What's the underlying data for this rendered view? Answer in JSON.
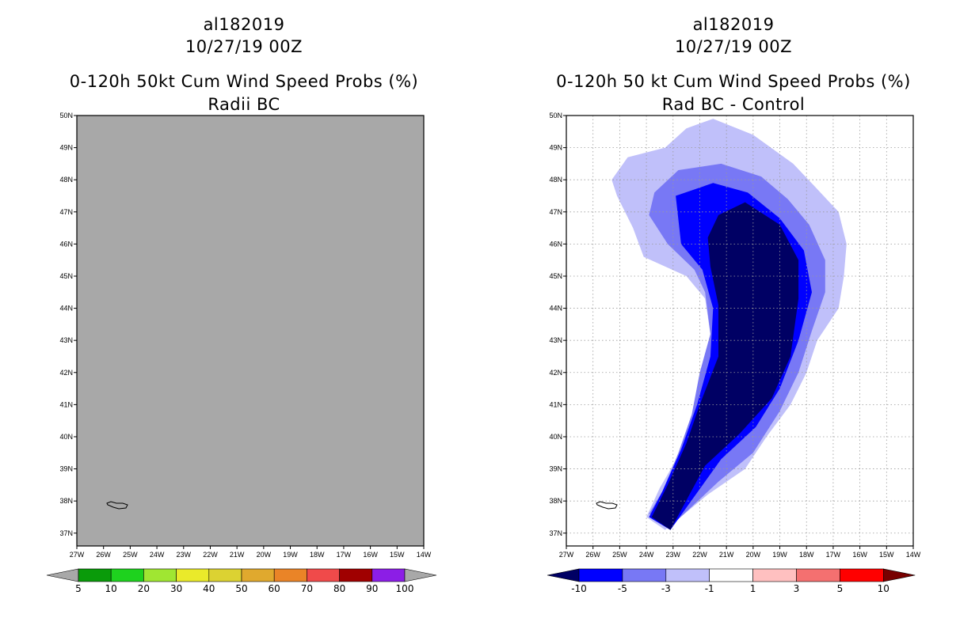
{
  "panels": [
    {
      "title": [
        "al182019",
        "10/27/19 00Z",
        "0-120h 50kt Cum Wind Speed Probs (%)",
        "Radii BC"
      ],
      "background": "#a8a8a8",
      "colorbar": {
        "labels": [
          "5",
          "10",
          "20",
          "30",
          "40",
          "50",
          "60",
          "70",
          "80",
          "90",
          "100"
        ],
        "colors": [
          "#0a9b0a",
          "#1ed21e",
          "#a0e632",
          "#eaea2a",
          "#dcd232",
          "#e0a92e",
          "#ea8427",
          "#f04a4a",
          "#a00000",
          "#8c1ee6"
        ],
        "low_arrow": "#a8a8a8",
        "high_arrow": "#a8a8a8"
      }
    },
    {
      "title": [
        "al182019",
        "10/27/19 00Z",
        "0-120h 50 kt Cum Wind Speed Probs (%)",
        "Rad BC - Control"
      ],
      "background": "#ffffff",
      "colorbar": {
        "labels": [
          "-10",
          "-5",
          "-3",
          "-1",
          "1",
          "3",
          "5",
          "10"
        ],
        "colors": [
          "#0000ff",
          "#7878f5",
          "#c0c0fa",
          "#ffffff",
          "#ffc0c0",
          "#f47070",
          "#ff0000"
        ],
        "low_arrow": "#000064",
        "high_arrow": "#780000"
      }
    }
  ],
  "map_axes": {
    "lon_ticks": [
      "27W",
      "26W",
      "25W",
      "24W",
      "23W",
      "22W",
      "21W",
      "20W",
      "19W",
      "18W",
      "17W",
      "16W",
      "15W",
      "14W"
    ],
    "lat_ticks": [
      "50N",
      "49N",
      "48N",
      "47N",
      "46N",
      "45N",
      "44N",
      "43N",
      "42N",
      "41N",
      "40N",
      "39N",
      "38N",
      "37N"
    ]
  },
  "chart_data": [
    {
      "type": "heatmap",
      "title": "0-120h 50kt Cum Wind Speed Probs (%) - Radii BC",
      "storm": "al182019",
      "valid": "10/27/19 00Z",
      "xrange_deg_lon": [
        -27,
        -14
      ],
      "yrange_deg_lat": [
        36.6,
        50
      ],
      "levels": [
        5,
        10,
        20,
        30,
        40,
        50,
        60,
        70,
        80,
        90,
        100
      ],
      "field": "all values below 5% (uniform gray)"
    },
    {
      "type": "heatmap",
      "title": "0-120h 50 kt Cum Wind Speed Probs (%) - Rad BC - Control",
      "storm": "al182019",
      "valid": "10/27/19 00Z",
      "xrange_deg_lon": [
        -27,
        -14
      ],
      "yrange_deg_lat": [
        36.6,
        50
      ],
      "levels": [
        -10,
        -5,
        -3,
        -1,
        1,
        3,
        5,
        10
      ],
      "contours": [
        {
          "level": "-1 to -3",
          "color": "#c0c0fa",
          "polygon_lon_lat": [
            [
              -23.3,
              49
            ],
            [
              -22.5,
              49.6
            ],
            [
              -21.5,
              49.9
            ],
            [
              -20,
              49.4
            ],
            [
              -18.5,
              48.5
            ],
            [
              -17.7,
              47.8
            ],
            [
              -16.8,
              47
            ],
            [
              -16.5,
              46
            ],
            [
              -16.6,
              45
            ],
            [
              -16.8,
              44
            ],
            [
              -17.6,
              43
            ],
            [
              -18,
              42
            ],
            [
              -18.6,
              41
            ],
            [
              -19.5,
              40
            ],
            [
              -20.3,
              39
            ],
            [
              -21.7,
              38.2
            ],
            [
              -23.3,
              37.1
            ],
            [
              -24,
              37.5
            ],
            [
              -23.5,
              38.4
            ],
            [
              -22.8,
              39.4
            ],
            [
              -22.3,
              40.5
            ],
            [
              -21.8,
              41.8
            ],
            [
              -21.6,
              43.2
            ],
            [
              -21.8,
              44.3
            ],
            [
              -22.5,
              45
            ],
            [
              -24.1,
              45.6
            ],
            [
              -24.5,
              46.5
            ],
            [
              -25.1,
              47.5
            ],
            [
              -25.3,
              48
            ],
            [
              -24.7,
              48.7
            ]
          ]
        },
        {
          "level": "-3 to -5",
          "color": "#7878f5",
          "polygon_lon_lat": [
            [
              -23.7,
              47.6
            ],
            [
              -22.8,
              48.3
            ],
            [
              -21.2,
              48.5
            ],
            [
              -19.7,
              48.1
            ],
            [
              -18.7,
              47.4
            ],
            [
              -17.9,
              46.6
            ],
            [
              -17.3,
              45.5
            ],
            [
              -17.3,
              44.5
            ],
            [
              -17.8,
              43.3
            ],
            [
              -18.3,
              42
            ],
            [
              -19,
              40.8
            ],
            [
              -20,
              39.5
            ],
            [
              -21.3,
              38.6
            ],
            [
              -23.1,
              37.2
            ],
            [
              -23.9,
              37.6
            ],
            [
              -23.4,
              38.3
            ],
            [
              -22.8,
              39.5
            ],
            [
              -22.3,
              40.7
            ],
            [
              -22,
              42
            ],
            [
              -21.6,
              43.2
            ],
            [
              -21.8,
              44.5
            ],
            [
              -22.2,
              45.2
            ],
            [
              -23.2,
              46
            ],
            [
              -23.9,
              46.9
            ]
          ]
        },
        {
          "level": "-5 to -10",
          "color": "#0000ff",
          "polygon_lon_lat": [
            [
              -22.9,
              47.5
            ],
            [
              -21.5,
              47.9
            ],
            [
              -20.2,
              47.6
            ],
            [
              -19,
              46.8
            ],
            [
              -18.1,
              45.8
            ],
            [
              -17.8,
              44.5
            ],
            [
              -18.3,
              43
            ],
            [
              -19,
              41.5
            ],
            [
              -19.9,
              40.3
            ],
            [
              -21.2,
              39.3
            ],
            [
              -23.1,
              37.1
            ],
            [
              -23.9,
              37.5
            ],
            [
              -23.4,
              38.3
            ],
            [
              -22.7,
              39.6
            ],
            [
              -22.1,
              41
            ],
            [
              -21.6,
              42.5
            ],
            [
              -21.5,
              44
            ],
            [
              -21.9,
              45.2
            ],
            [
              -22.7,
              46
            ]
          ]
        },
        {
          "level": "< -10",
          "color": "#000064",
          "polygon_lon_lat": [
            [
              -21.3,
              46.9
            ],
            [
              -20.3,
              47.3
            ],
            [
              -19,
              46.6
            ],
            [
              -18.3,
              45.5
            ],
            [
              -18.3,
              44.3
            ],
            [
              -18.6,
              42.5
            ],
            [
              -19.3,
              41.2
            ],
            [
              -20.5,
              40.1
            ],
            [
              -21.8,
              39.1
            ],
            [
              -23.1,
              37.1
            ],
            [
              -23.8,
              37.5
            ],
            [
              -23.2,
              38.5
            ],
            [
              -22.5,
              39.8
            ],
            [
              -22,
              41
            ],
            [
              -21.3,
              42.5
            ],
            [
              -21.3,
              44.1
            ],
            [
              -21.6,
              45.3
            ],
            [
              -21.7,
              46.2
            ]
          ]
        }
      ]
    }
  ]
}
